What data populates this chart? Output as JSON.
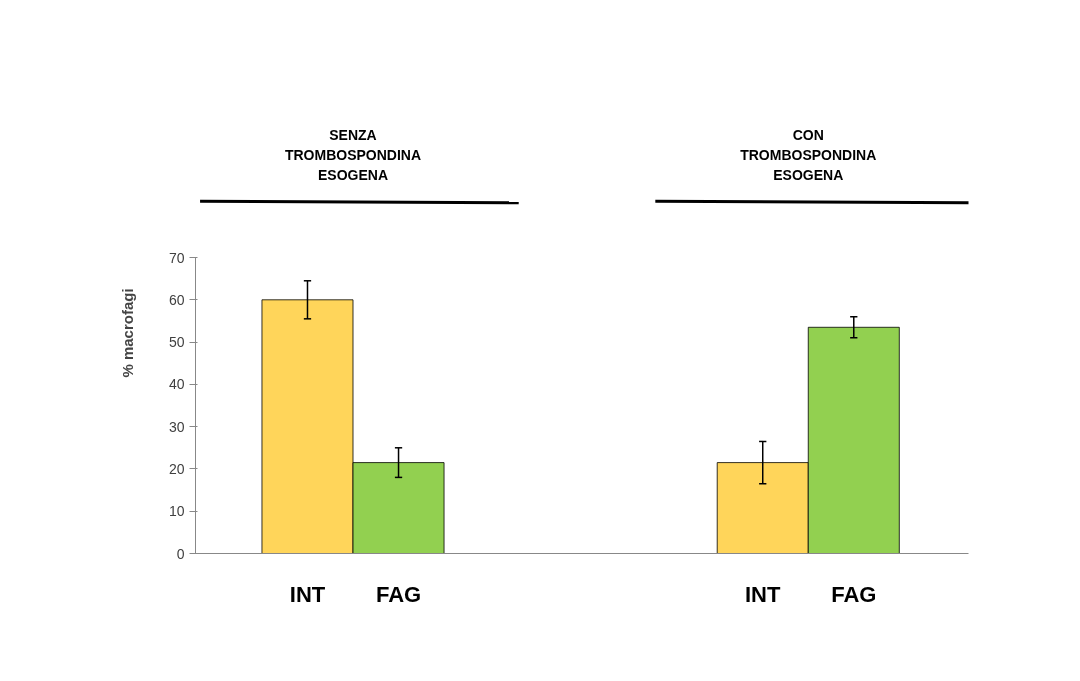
{
  "chart_data": {
    "type": "bar",
    "ylabel": "% macrofagi",
    "categories": [
      "INT",
      "FAG",
      null,
      null,
      null,
      "INT",
      "FAG"
    ],
    "values": [
      60,
      21.5,
      null,
      null,
      null,
      21.5,
      53.5
    ],
    "colors": [
      "#ffd55a",
      "#92d050",
      "#ffffff",
      "#ffffff",
      "#ffffff",
      "#ffd55a",
      "#92d050"
    ],
    "errors": [
      4.5,
      3.5,
      null,
      null,
      null,
      5,
      2.5
    ],
    "ylim": [
      0,
      70
    ],
    "yticks": [
      0,
      10,
      20,
      30,
      40,
      50,
      60,
      70
    ],
    "grid": false,
    "annotations": [
      "SENZA TROMBOSPONDINA ESOGENA",
      "CON TROMBOSPONDINA ESOGENA"
    ]
  }
}
